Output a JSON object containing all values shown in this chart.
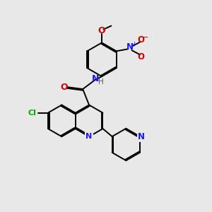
{
  "bg_color": "#e8e8e8",
  "bond_color": "#000000",
  "bond_width": 1.4,
  "dbo": 0.055,
  "atoms": {
    "N_blue": "#1a1aff",
    "O_red": "#cc0000",
    "Cl_green": "#00aa00",
    "H_gray": "#555555"
  },
  "figsize": [
    3.0,
    3.0
  ],
  "dpi": 100,
  "xlim": [
    0,
    10
  ],
  "ylim": [
    0,
    10
  ]
}
